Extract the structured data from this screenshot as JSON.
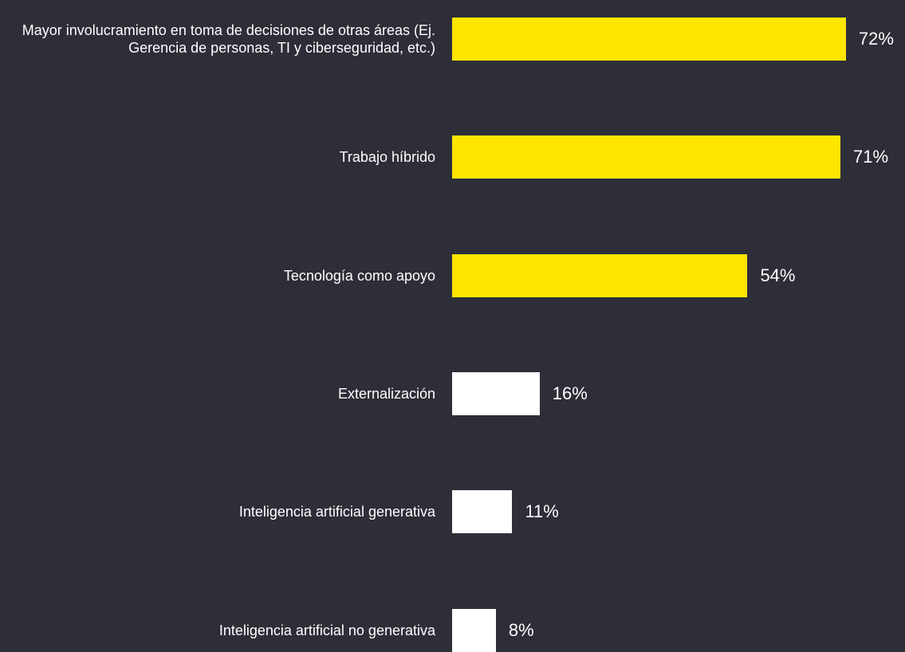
{
  "chart_data": {
    "type": "barh",
    "categories": [
      "Mayor involucramiento en toma de decisiones de otras áreas (Ej. Gerencia de personas, TI y ciberseguridad, etc.)",
      "Trabajo híbrido",
      "Tecnología como apoyo",
      "Externalización",
      "Inteligencia artificial generativa",
      "Inteligencia artificial no generativa"
    ],
    "values": [
      72,
      71,
      54,
      16,
      11,
      8
    ],
    "value_labels": [
      "72%",
      "71%",
      "54%",
      "16%",
      "11%",
      "8%"
    ],
    "colors": [
      "#ffe600",
      "#ffe600",
      "#ffe600",
      "#ffffff",
      "#ffffff",
      "#ffffff"
    ]
  }
}
